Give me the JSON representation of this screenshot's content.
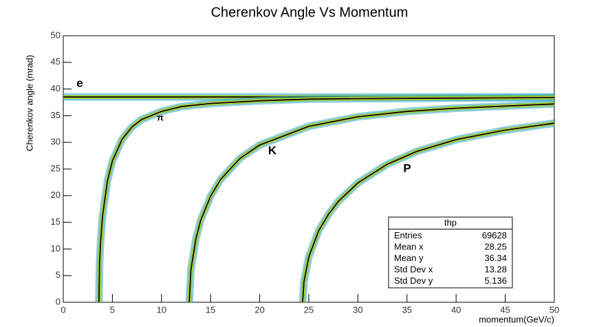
{
  "chart_data": {
    "type": "line",
    "title": "Cherenkov Angle Vs Momentum",
    "x_label": "momentum(GeV/c)",
    "y_label": "Cherenkov angle (mrad)",
    "xlim": [
      0,
      50
    ],
    "ylim": [
      0,
      50
    ],
    "xticks": [
      0,
      5,
      10,
      15,
      20,
      25,
      30,
      35,
      40,
      45,
      50
    ],
    "yticks": [
      0,
      5,
      10,
      15,
      20,
      25,
      30,
      35,
      40,
      45,
      50
    ],
    "series": [
      {
        "name": "e",
        "color": "#000000",
        "x": [
          0,
          50
        ],
        "values": [
          38.5,
          38.5
        ]
      },
      {
        "name": "π",
        "color": "#000000",
        "x": [
          3.63,
          3.7,
          3.8,
          4,
          4.5,
          5,
          6,
          7,
          8,
          10,
          12,
          15,
          20,
          25,
          30,
          40,
          50
        ],
        "values": [
          0,
          7.5,
          11.4,
          16.2,
          22.8,
          26.5,
          30.6,
          32.9,
          34.3,
          35.8,
          36.7,
          37.3,
          37.8,
          38.1,
          38.2,
          38.3,
          38.4
        ]
      },
      {
        "name": "K",
        "color": "#000000",
        "x": [
          12.83,
          13,
          13.5,
          14,
          15,
          16,
          18,
          20,
          25,
          30,
          35,
          40,
          50
        ],
        "values": [
          0,
          6.1,
          11.9,
          15.4,
          19.9,
          23.0,
          27.0,
          29.5,
          33.0,
          34.8,
          35.8,
          36.4,
          37.2
        ]
      },
      {
        "name": "P",
        "color": "#000000",
        "x": [
          24.38,
          24.5,
          25,
          26,
          27,
          28,
          30,
          33,
          36,
          40,
          45,
          50
        ],
        "values": [
          0,
          3.8,
          8.5,
          13.4,
          16.5,
          18.9,
          22.4,
          25.9,
          28.3,
          30.5,
          32.3,
          33.6
        ]
      }
    ],
    "stats": {
      "title": "thp",
      "rows": [
        [
          "Entries",
          69628
        ],
        [
          "Mean x",
          28.25
        ],
        [
          "Mean y",
          36.34
        ],
        [
          "Std Dev x",
          13.28
        ],
        [
          "Std Dev y",
          5.136
        ]
      ]
    }
  }
}
